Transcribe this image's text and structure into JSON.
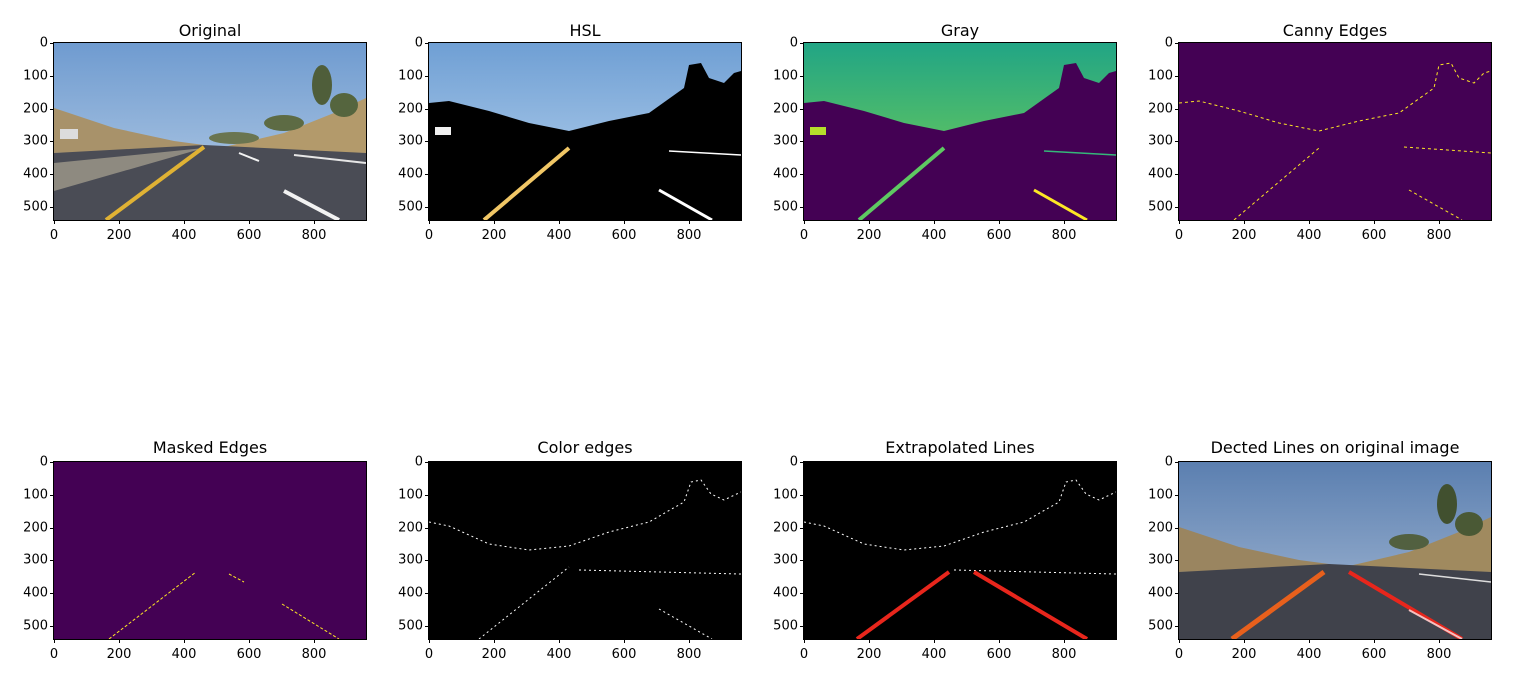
{
  "panels": [
    {
      "title": "Original"
    },
    {
      "title": "HSL"
    },
    {
      "title": "Gray"
    },
    {
      "title": "Canny Edges"
    },
    {
      "title": "Masked Edges"
    },
    {
      "title": "Color edges"
    },
    {
      "title": "Extrapolated Lines"
    },
    {
      "title": "Dected Lines on original image"
    }
  ],
  "axes": {
    "x_ticks": [
      "0",
      "200",
      "400",
      "600",
      "800"
    ],
    "y_ticks": [
      "0",
      "100",
      "200",
      "300",
      "400",
      "500"
    ]
  },
  "colors": {
    "viridis_purple": "#440154",
    "viridis_teal": "#21a585",
    "viridis_green": "#5ec962",
    "viridis_yellow": "#fde725",
    "sky": "#7fa8d6",
    "road": "#4a4c55",
    "hill": "#a8926a",
    "lane_red": "#e8261c"
  }
}
